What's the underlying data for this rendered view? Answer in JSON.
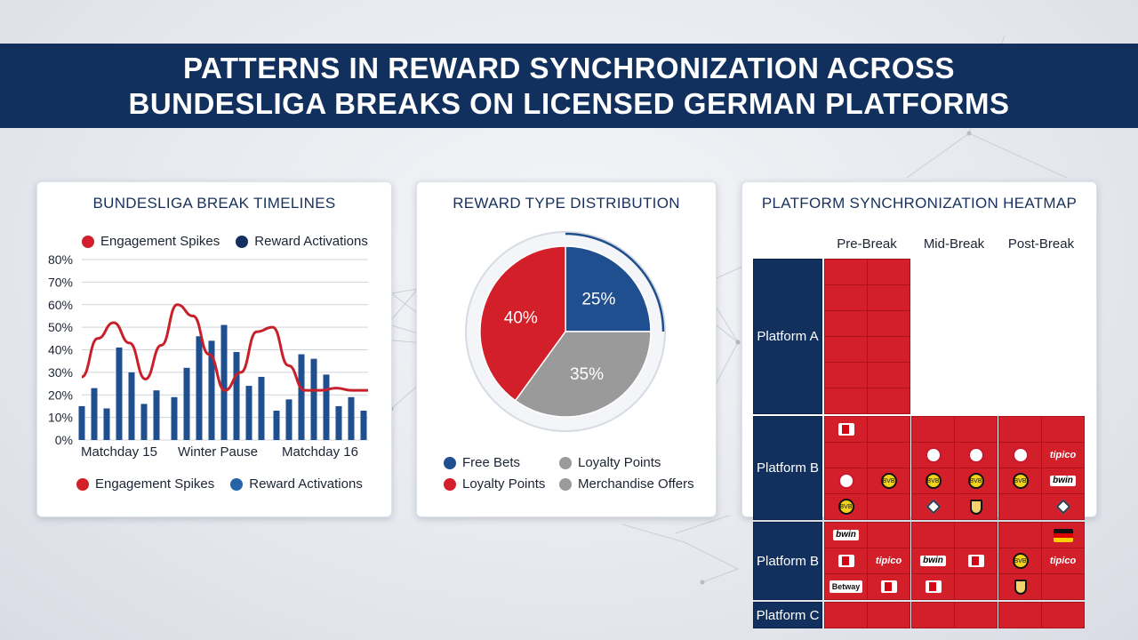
{
  "banner": {
    "title_line1": "PATTERNS IN REWARD SYNCHRONIZATION ACROSS",
    "title_line2": "BUNDESLIGA BREAKS ON LICENSED GERMAN PLATFORMS"
  },
  "colors": {
    "navy": "#12305e",
    "red": "#d21f2a",
    "blue_series": "#1f4f8e",
    "grey_slice": "#9a9a9a"
  },
  "chart_data": [
    {
      "type": "bar",
      "title": "BUNDESLIGA BREAK TIMELINES",
      "categories": [
        "Matchday 15",
        "Winter Pause",
        "Matchday 16"
      ],
      "ylim": [
        0,
        80
      ],
      "yticks": [
        0,
        10,
        20,
        30,
        40,
        50,
        60,
        70,
        80
      ],
      "ytick_labels": [
        "0%",
        "10%",
        "20%",
        "30%",
        "40%",
        "50%",
        "60%",
        "70%",
        "80%"
      ],
      "grid": true,
      "legend_top": [
        "Engagement Spikes",
        "Reward Activations"
      ],
      "legend_bottom": [
        "Engagement Spikes",
        "Reward Activations"
      ],
      "series": [
        {
          "name": "Reward Activations",
          "type": "bar",
          "groups": [
            [
              15,
              23,
              14,
              41,
              30,
              16,
              22
            ],
            [
              19,
              32,
              46,
              44,
              51,
              39,
              24,
              28
            ],
            [
              13,
              18,
              38,
              36,
              29,
              15,
              19,
              13
            ]
          ]
        },
        {
          "name": "Engagement Spikes",
          "type": "line",
          "x": [
            0,
            0.5,
            1,
            1.5,
            2,
            2.5,
            3,
            3.5,
            4,
            4.5,
            5,
            5.5,
            6,
            6.5,
            7,
            7.5,
            8,
            8.5,
            9
          ],
          "values": [
            28,
            45,
            52,
            43,
            27,
            42,
            60,
            55,
            38,
            22,
            30,
            48,
            50,
            33,
            22,
            22,
            23,
            22,
            22
          ]
        }
      ]
    },
    {
      "type": "pie",
      "title": "REWARD TYPE DISTRIBUTION",
      "slices": [
        {
          "label": "25%",
          "value": 25,
          "color": "#1f4f8e"
        },
        {
          "label": "35%",
          "value": 35,
          "color": "#9a9a9a"
        },
        {
          "label": "40%",
          "value": 40,
          "color": "#d21f2a"
        }
      ],
      "legend": [
        {
          "label": "Free Bets",
          "color": "#1f4f8e"
        },
        {
          "label": "Loyalty Points",
          "color": "#9a9a9a"
        },
        {
          "label": "Loyalty Points",
          "color": "#d21f2a"
        },
        {
          "label": "Merchandise Offers",
          "color": "#9a9a9a"
        }
      ]
    },
    {
      "type": "heatmap",
      "title": "PLATFORM SYNCHRONIZATION HEATMAP",
      "columns": [
        "Pre-Break",
        "Mid-Break",
        "Post-Break"
      ],
      "rows": [
        {
          "label": "Platform A",
          "cells": [
            [
              "",
              ""
            ],
            [
              "",
              ""
            ],
            [
              "",
              ""
            ],
            [
              "",
              ""
            ],
            [
              "",
              ""
            ],
            [
              "",
              ""
            ]
          ]
        },
        {
          "label": "Platform B",
          "cells": [
            [
              "dfl",
              "",
              "",
              "",
              "",
              ""
            ],
            [
              "",
              "",
              "fcb",
              "fcb",
              "fcb",
              "tipico"
            ],
            [
              "fcb",
              "bvb",
              "bvb",
              "bvb",
              "bvb",
              "bwin"
            ],
            [
              "bvb",
              "",
              "hsv",
              "sge",
              "",
              "hsv"
            ]
          ]
        },
        {
          "label": "Platform B",
          "cells": [
            [
              "bwin",
              "",
              "",
              "",
              "",
              "flag"
            ],
            [
              "dfl",
              "tipico",
              "bwin",
              "dfl",
              "bvb",
              "tipico"
            ],
            [
              "Betway",
              "dfl",
              "dfl",
              "",
              "sge",
              ""
            ]
          ]
        },
        {
          "label": "Platform C",
          "cells": [
            [
              "",
              "",
              "",
              "",
              "",
              ""
            ]
          ]
        }
      ],
      "logo_text": {
        "tipico": "tipico",
        "bwin": "bwin",
        "betway": "Betway",
        "bvb": "BVB"
      }
    }
  ]
}
